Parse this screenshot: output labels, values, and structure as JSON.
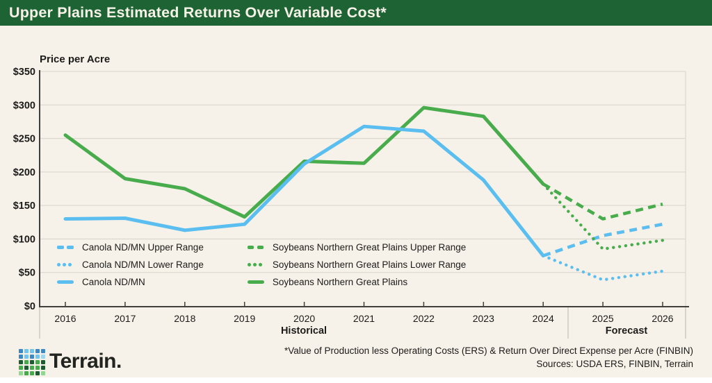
{
  "header": {
    "title": "Upper Plains Estimated Returns Over Variable Cost*"
  },
  "chart_data": {
    "type": "line",
    "ylabel": "Price per Acre",
    "x": [
      2016,
      2017,
      2018,
      2019,
      2020,
      2021,
      2022,
      2023,
      2024,
      2025,
      2026
    ],
    "ylim": [
      0,
      350
    ],
    "yticks": [
      0,
      50,
      100,
      150,
      200,
      250,
      300,
      350
    ],
    "ytick_labels": [
      "$0",
      "$50",
      "$100",
      "$150",
      "$200",
      "$250",
      "$300",
      "$350"
    ],
    "grid": true,
    "legend_position": "inside-bottom-left",
    "sections": [
      {
        "label": "Historical",
        "range": [
          2016,
          2024
        ]
      },
      {
        "label": "Forecast",
        "range": [
          2025,
          2026
        ]
      }
    ],
    "series": [
      {
        "name": "Canola ND/MN Upper Range",
        "style": "dashed",
        "color_key": "canola",
        "x": [
          2024,
          2025,
          2026
        ],
        "values": [
          75,
          105,
          122
        ]
      },
      {
        "name": "Canola ND/MN Lower Range",
        "style": "dotted",
        "color_key": "canola",
        "x": [
          2024,
          2025,
          2026
        ],
        "values": [
          75,
          39,
          52
        ]
      },
      {
        "name": "Canola ND/MN",
        "style": "solid",
        "color_key": "canola",
        "x": [
          2016,
          2017,
          2018,
          2019,
          2020,
          2021,
          2022,
          2023,
          2024
        ],
        "values": [
          130,
          131,
          113,
          122,
          212,
          268,
          261,
          188,
          75
        ]
      },
      {
        "name": "Soybeans Northern Great Plains Upper Range",
        "style": "dashed",
        "color_key": "soybeans",
        "x": [
          2024,
          2025,
          2026
        ],
        "values": [
          182,
          130,
          152
        ]
      },
      {
        "name": "Soybeans Northern Great Plains Lower Range",
        "style": "dotted",
        "color_key": "soybeans",
        "x": [
          2024,
          2025,
          2026
        ],
        "values": [
          182,
          85,
          98
        ]
      },
      {
        "name": "Soybeans Northern Great Plains",
        "style": "solid",
        "color_key": "soybeans",
        "x": [
          2016,
          2017,
          2018,
          2019,
          2020,
          2021,
          2022,
          2023,
          2024
        ],
        "values": [
          255,
          190,
          175,
          133,
          216,
          213,
          296,
          283,
          182
        ]
      }
    ]
  },
  "colors": {
    "canola": "#5BBEF0",
    "soybeans": "#48AC4D",
    "header_bg": "#1E6334",
    "background": "#F7F2E9",
    "grid": "#DED9CF",
    "axis": "#3F3F3D",
    "divider": "#C9C4BA",
    "text": "#1B1B19"
  },
  "footer": {
    "brand": "Terrain.",
    "note_line1": "*Value of Production less Operating Costs (ERS) & Return Over Direct Expense per Acre (FINBIN)",
    "note_line2": "Sources: USDA ERS, FINBIN, Terrain",
    "logo_grid": [
      "#3C87C8",
      "#72C5EF",
      "#72C5EF",
      "#3C87C8",
      "#3C87C8",
      "#3C87C8",
      "#72C5EF",
      "#3C87C8",
      "#72C5EF",
      "#9BD7F4",
      "#1D5C33",
      "#46AB4C",
      "#1D5C33",
      "#46AB4C",
      "#1D5C33",
      "#46AB4C",
      "#1D5C33",
      "#46AB4C",
      "#46AB4C",
      "#1D5C33",
      "#8ED98F",
      "#46AB4C",
      "#46AB4C",
      "#1D5C33",
      "#8ED98F"
    ]
  }
}
